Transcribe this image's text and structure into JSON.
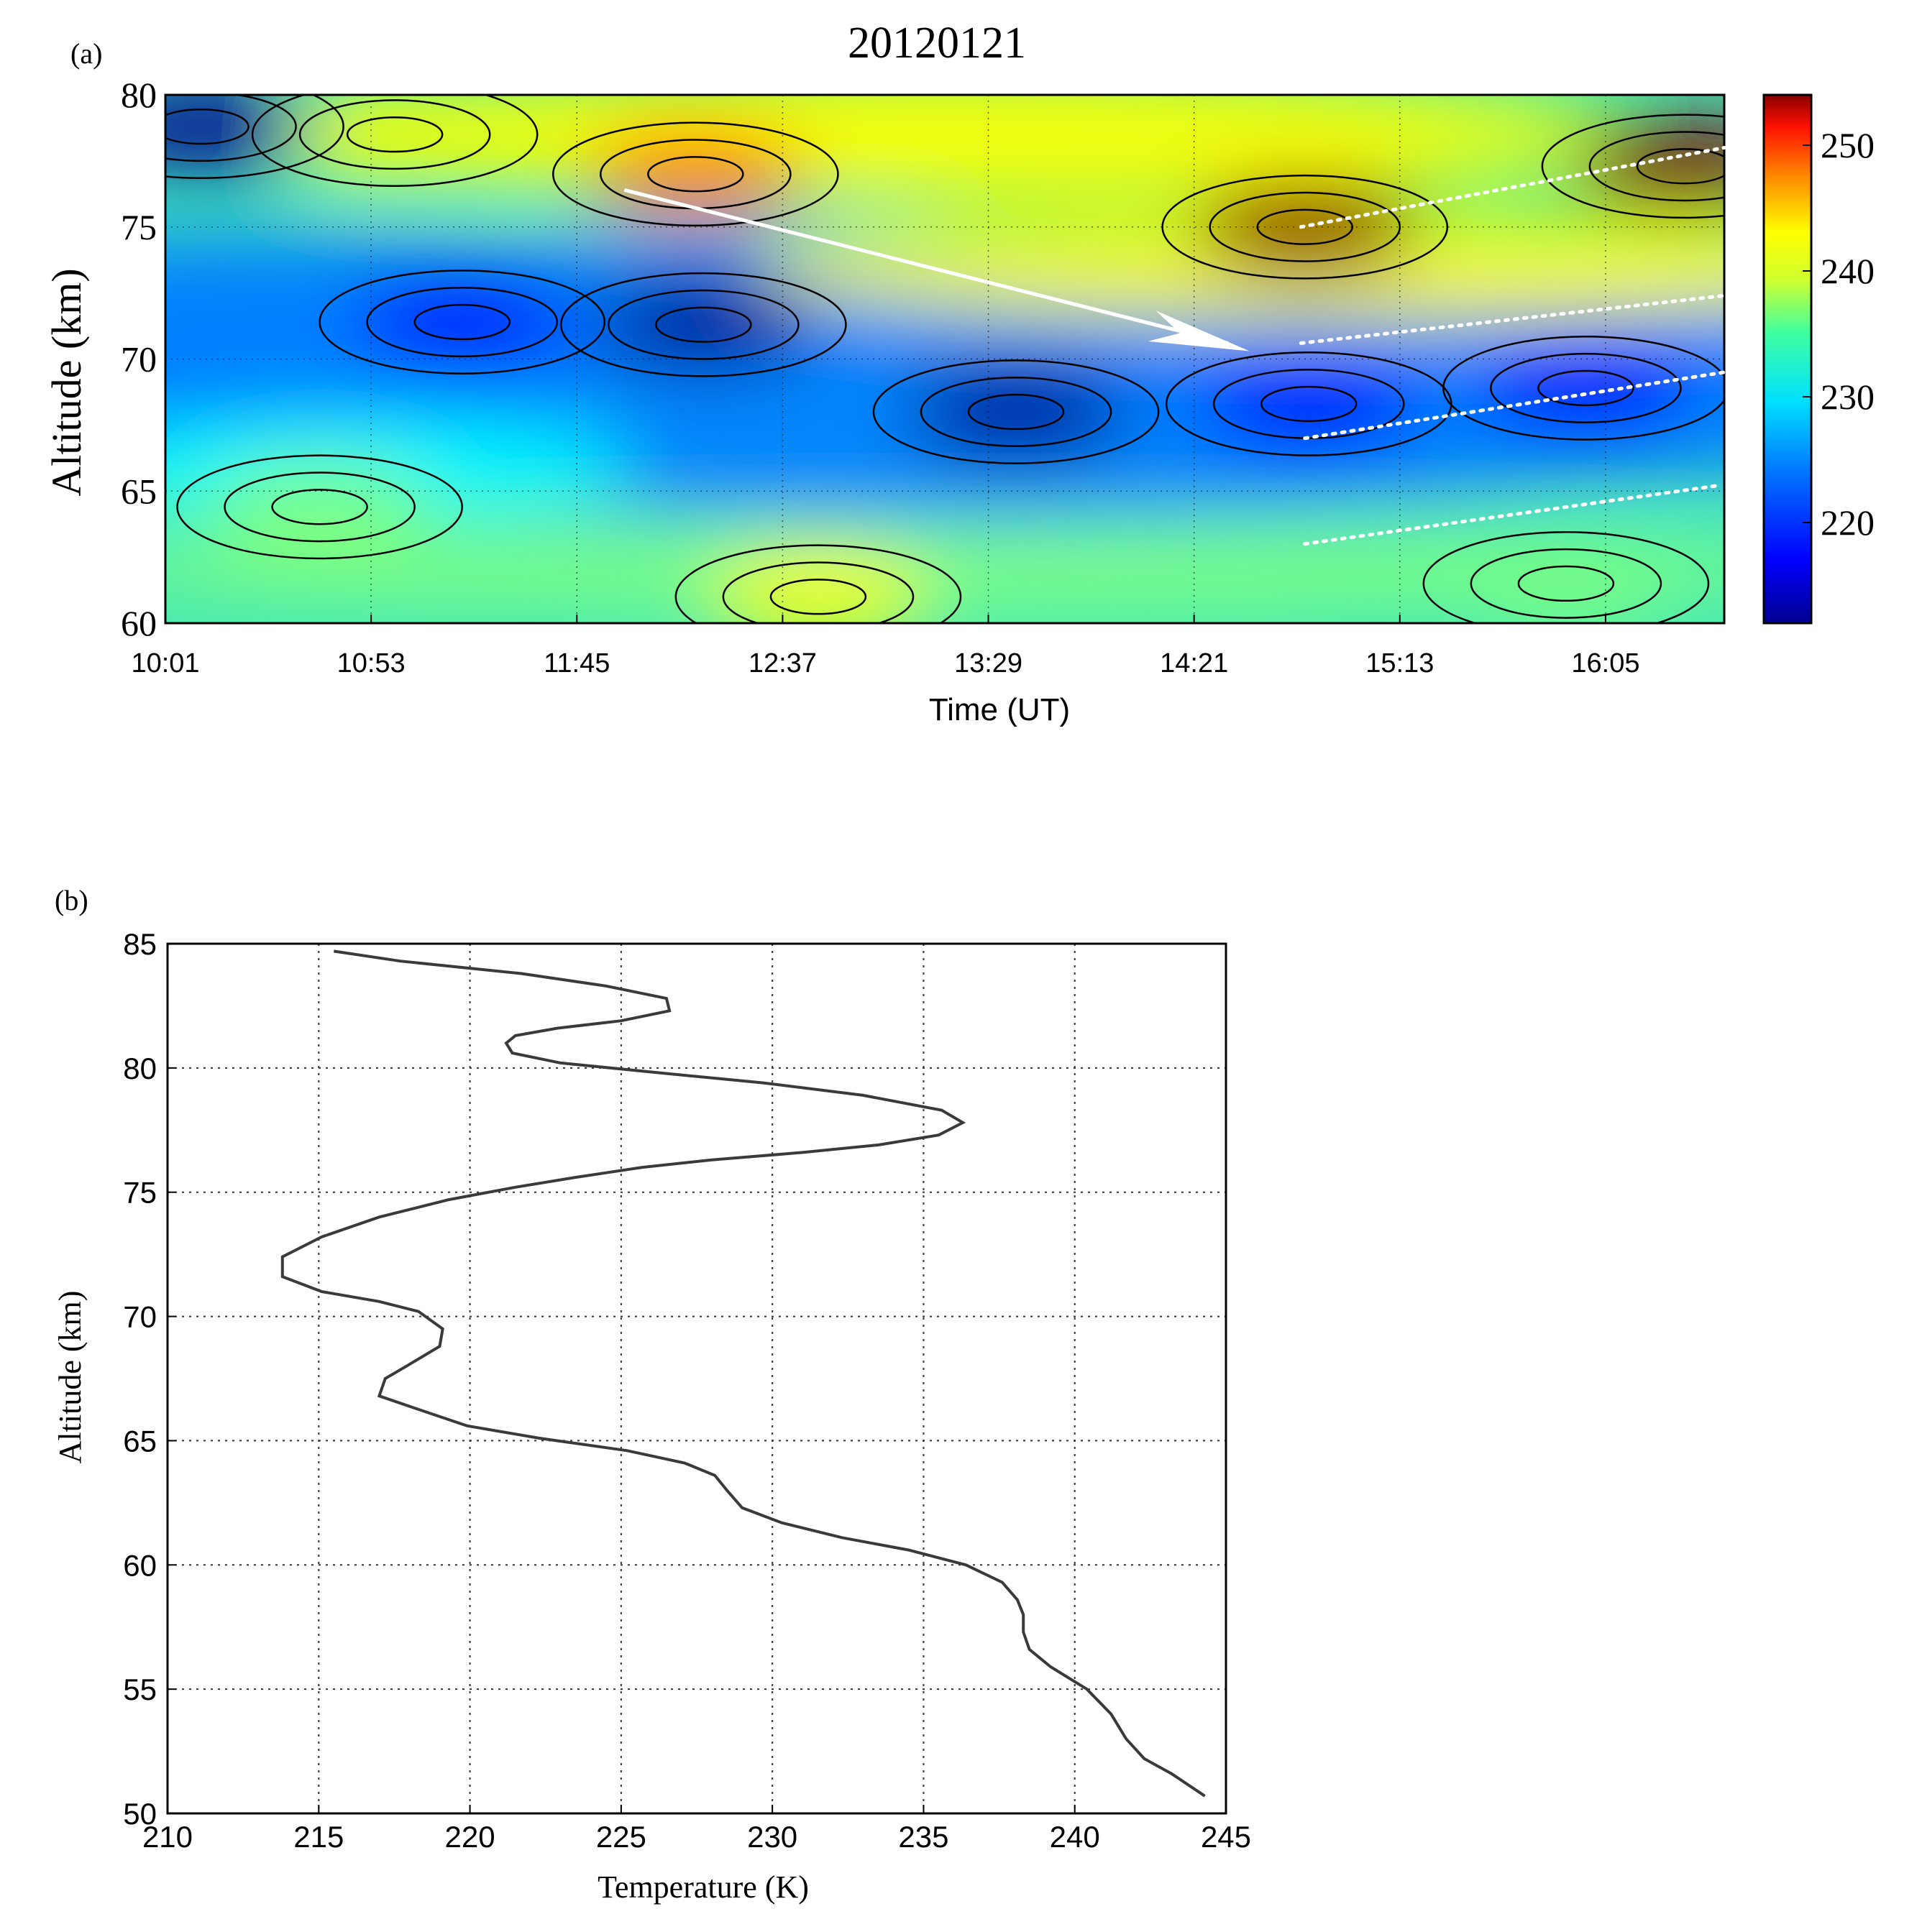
{
  "chart_data": [
    {
      "panel_label": "(a)",
      "type": "heatmap",
      "title": "20120121",
      "xlabel": "Time (UT)",
      "ylabel": "Altitude (km)",
      "x_ticks": [
        "10:01",
        "10:53",
        "11:45",
        "12:37",
        "13:29",
        "14:21",
        "15:13",
        "16:05"
      ],
      "y_ticks": [
        60,
        65,
        70,
        75,
        80
      ],
      "ylim": [
        60,
        80
      ],
      "x_range_minutes": [
        601,
        995
      ],
      "colorbar": {
        "ticks": [
          220,
          230,
          240,
          250
        ],
        "range": [
          212,
          254
        ]
      },
      "grid": true,
      "features": [
        {
          "kind": "warm",
          "t": 985,
          "z": 77.3,
          "value": 252
        },
        {
          "kind": "warm",
          "t": 889,
          "z": 75.0,
          "value": 253
        },
        {
          "kind": "warm",
          "t": 735,
          "z": 77.0,
          "value": 242
        },
        {
          "kind": "warm",
          "t": 659,
          "z": 78.5,
          "value": 240
        },
        {
          "kind": "cold",
          "t": 737,
          "z": 71.3,
          "value": 214
        },
        {
          "kind": "cold",
          "t": 816,
          "z": 68.0,
          "value": 214
        },
        {
          "kind": "cold",
          "t": 890,
          "z": 68.3,
          "value": 216
        },
        {
          "kind": "cold",
          "t": 610,
          "z": 78.8,
          "value": 214
        },
        {
          "kind": "cold",
          "t": 676,
          "z": 71.4,
          "value": 218
        },
        {
          "kind": "cold",
          "t": 960,
          "z": 68.9,
          "value": 217
        },
        {
          "kind": "warm",
          "t": 766,
          "z": 61.0,
          "value": 237
        },
        {
          "kind": "warm",
          "t": 640,
          "z": 64.4,
          "value": 232
        },
        {
          "kind": "warm",
          "t": 955,
          "z": 61.5,
          "value": 234
        }
      ],
      "colors": {
        "scale": [
          "#00008f",
          "#0000ff",
          "#0080ff",
          "#00ffff",
          "#80ff80",
          "#ffff00",
          "#ff8000",
          "#ff0000",
          "#800000"
        ]
      }
    },
    {
      "panel_label": "(b)",
      "type": "line",
      "title": "",
      "xlabel": "Temperature (K)",
      "ylabel": "Altitude (km)",
      "xlim": [
        210,
        245
      ],
      "ylim": [
        50,
        85
      ],
      "x_ticks": [
        210,
        215,
        220,
        225,
        230,
        235,
        240,
        245
      ],
      "y_ticks": [
        50,
        55,
        60,
        65,
        70,
        75,
        80,
        85
      ],
      "grid": true,
      "series": [
        {
          "name": "temperature",
          "points": [
            [
              244.3,
              50.7
            ],
            [
              243.2,
              51.6
            ],
            [
              242.3,
              52.2
            ],
            [
              241.7,
              53.0
            ],
            [
              241.2,
              54.0
            ],
            [
              240.4,
              55.0
            ],
            [
              239.2,
              55.9
            ],
            [
              238.5,
              56.6
            ],
            [
              238.3,
              57.3
            ],
            [
              238.3,
              58.0
            ],
            [
              238.1,
              58.6
            ],
            [
              237.6,
              59.3
            ],
            [
              236.4,
              60.0
            ],
            [
              234.5,
              60.6
            ],
            [
              232.3,
              61.1
            ],
            [
              230.3,
              61.7
            ],
            [
              229.0,
              62.3
            ],
            [
              228.5,
              63.0
            ],
            [
              228.1,
              63.6
            ],
            [
              227.1,
              64.1
            ],
            [
              225.2,
              64.6
            ],
            [
              222.3,
              65.1
            ],
            [
              219.9,
              65.6
            ],
            [
              218.2,
              66.3
            ],
            [
              217.0,
              66.8
            ],
            [
              217.2,
              67.5
            ],
            [
              217.9,
              68.0
            ],
            [
              219.0,
              68.8
            ],
            [
              219.1,
              69.5
            ],
            [
              218.3,
              70.2
            ],
            [
              217.0,
              70.6
            ],
            [
              215.1,
              71.0
            ],
            [
              213.8,
              71.6
            ],
            [
              213.8,
              72.4
            ],
            [
              215.1,
              73.2
            ],
            [
              217.0,
              74.0
            ],
            [
              219.3,
              74.7
            ],
            [
              221.5,
              75.2
            ],
            [
              223.5,
              75.6
            ],
            [
              225.7,
              76.0
            ],
            [
              228.0,
              76.3
            ],
            [
              231.0,
              76.6
            ],
            [
              233.5,
              76.9
            ],
            [
              235.5,
              77.3
            ],
            [
              236.3,
              77.8
            ],
            [
              235.6,
              78.3
            ],
            [
              233.0,
              78.9
            ],
            [
              229.7,
              79.4
            ],
            [
              226.3,
              79.8
            ],
            [
              223.0,
              80.2
            ],
            [
              221.4,
              80.6
            ],
            [
              221.2,
              81.0
            ],
            [
              221.5,
              81.3
            ],
            [
              222.9,
              81.6
            ],
            [
              225.0,
              81.9
            ],
            [
              226.6,
              82.3
            ],
            [
              226.5,
              82.8
            ],
            [
              224.5,
              83.3
            ],
            [
              221.7,
              83.8
            ],
            [
              217.7,
              84.3
            ],
            [
              215.5,
              84.7
            ]
          ]
        }
      ],
      "colors": {
        "line": "#3a3a3a",
        "grid": "#333333"
      }
    }
  ]
}
